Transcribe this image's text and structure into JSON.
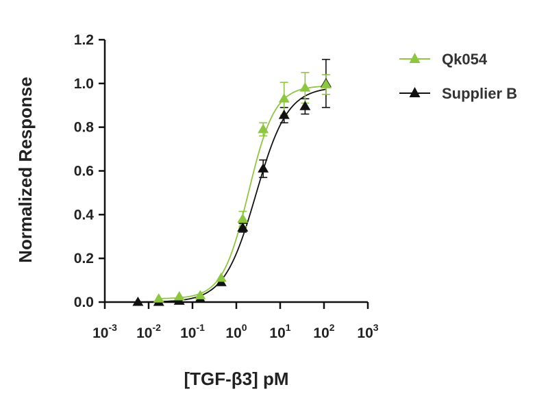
{
  "chart_data": {
    "type": "scatter",
    "title": "",
    "xlabel": "[TGF-β3] pM",
    "ylabel": "Normalized Response",
    "xscale": "log10",
    "xlim": [
      0.001,
      1000
    ],
    "ylim": [
      0,
      1.2
    ],
    "x_ticks": [
      {
        "base": "10",
        "exp": "-3"
      },
      {
        "base": "10",
        "exp": "-2"
      },
      {
        "base": "10",
        "exp": "-1"
      },
      {
        "base": "10",
        "exp": "0"
      },
      {
        "base": "10",
        "exp": "1"
      },
      {
        "base": "10",
        "exp": "2"
      },
      {
        "base": "10",
        "exp": "3"
      }
    ],
    "y_ticks": [
      "0.0",
      "0.2",
      "0.4",
      "0.6",
      "0.8",
      "1.0",
      "1.2"
    ],
    "grid": false,
    "legend_position": "top-right",
    "series": [
      {
        "name": "Qk054",
        "color": "#8dc63f",
        "marker": "triangle",
        "fit": {
          "bottom": 0.015,
          "top": 0.99,
          "ec50": 1.9,
          "hill": 1.45
        },
        "points": [
          {
            "x": 0.017,
            "y": 0.015,
            "err": 0.0
          },
          {
            "x": 0.05,
            "y": 0.025,
            "err": 0.0
          },
          {
            "x": 0.15,
            "y": 0.03,
            "err": 0.0
          },
          {
            "x": 0.45,
            "y": 0.11,
            "err": 0.0
          },
          {
            "x": 1.4,
            "y": 0.38,
            "err": 0.035
          },
          {
            "x": 4.1,
            "y": 0.79,
            "err": 0.03
          },
          {
            "x": 12.3,
            "y": 0.93,
            "err": 0.075
          },
          {
            "x": 37,
            "y": 0.98,
            "err": 0.07
          },
          {
            "x": 111,
            "y": 0.995,
            "err": 0.045
          }
        ]
      },
      {
        "name": "Supplier B",
        "color": "#111111",
        "marker": "triangle",
        "fit": {
          "bottom": 0.0,
          "top": 0.985,
          "ec50": 2.8,
          "hill": 1.2
        },
        "points": [
          {
            "x": 0.0057,
            "y": 0.0,
            "err": 0.0
          },
          {
            "x": 0.017,
            "y": 0.0,
            "err": 0.0
          },
          {
            "x": 0.05,
            "y": 0.005,
            "err": 0.0
          },
          {
            "x": 0.15,
            "y": 0.015,
            "err": 0.0
          },
          {
            "x": 0.45,
            "y": 0.09,
            "err": 0.0
          },
          {
            "x": 1.4,
            "y": 0.34,
            "err": 0.02
          },
          {
            "x": 4.1,
            "y": 0.61,
            "err": 0.04
          },
          {
            "x": 12.3,
            "y": 0.855,
            "err": 0.035
          },
          {
            "x": 37,
            "y": 0.895,
            "err": 0.035
          },
          {
            "x": 111,
            "y": 1.0,
            "err": 0.11
          }
        ]
      }
    ]
  }
}
